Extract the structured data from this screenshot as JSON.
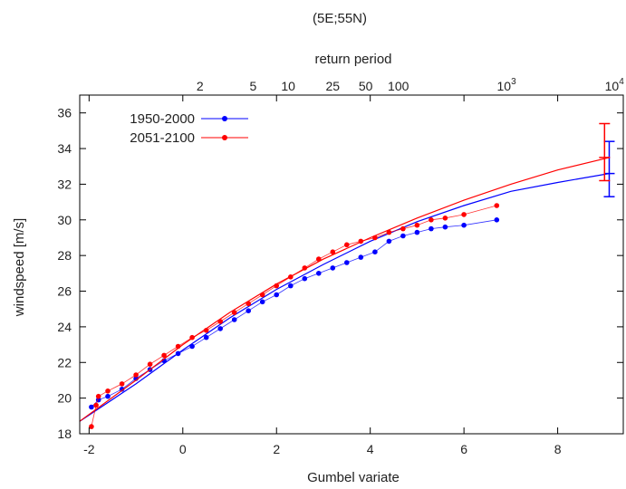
{
  "chart_data": {
    "type": "scatter",
    "title": "(5E;55N)",
    "xlabel": "Gumbel variate",
    "ylabel": "windspeed [m/s]",
    "x2label": "return period",
    "xlim": [
      -2.2,
      9.4
    ],
    "ylim": [
      18,
      37
    ],
    "grid": false,
    "legend_position": "top-left",
    "x_ticks": [
      -2,
      0,
      2,
      4,
      6,
      8
    ],
    "y_ticks": [
      18,
      20,
      22,
      24,
      26,
      28,
      30,
      32,
      34,
      36
    ],
    "x2_ticks": [
      {
        "label": "2",
        "value": 2
      },
      {
        "label": "5",
        "value": 5
      },
      {
        "label": "10",
        "value": 10
      },
      {
        "label": "25",
        "value": 25
      },
      {
        "label": "50",
        "value": 50
      },
      {
        "label": "100",
        "value": 100
      },
      {
        "label": "10",
        "exp": "3",
        "value": 1000
      },
      {
        "label": "10",
        "exp": "4",
        "value": 10000
      }
    ],
    "series": [
      {
        "name": "1950-2000",
        "color": "#0000ff",
        "points": [
          [
            -1.95,
            19.5
          ],
          [
            -1.8,
            19.9
          ],
          [
            -1.6,
            20.1
          ],
          [
            -1.3,
            20.5
          ],
          [
            -1.0,
            21.1
          ],
          [
            -0.7,
            21.6
          ],
          [
            -0.4,
            22.1
          ],
          [
            -0.1,
            22.5
          ],
          [
            0.2,
            22.9
          ],
          [
            0.5,
            23.4
          ],
          [
            0.8,
            23.9
          ],
          [
            1.1,
            24.4
          ],
          [
            1.4,
            24.9
          ],
          [
            1.7,
            25.4
          ],
          [
            2.0,
            25.8
          ],
          [
            2.3,
            26.3
          ],
          [
            2.6,
            26.7
          ],
          [
            2.9,
            27.0
          ],
          [
            3.2,
            27.3
          ],
          [
            3.5,
            27.6
          ],
          [
            3.8,
            27.9
          ],
          [
            4.1,
            28.2
          ],
          [
            4.4,
            28.8
          ],
          [
            4.7,
            29.1
          ],
          [
            5.0,
            29.3
          ],
          [
            5.3,
            29.5
          ],
          [
            5.6,
            29.6
          ],
          [
            6.0,
            29.7
          ],
          [
            6.7,
            30.0
          ]
        ],
        "fit_points": [
          [
            -2.2,
            18.7
          ],
          [
            -1,
            20.8
          ],
          [
            0,
            22.7
          ],
          [
            1,
            24.5
          ],
          [
            2,
            26.1
          ],
          [
            3,
            27.5
          ],
          [
            4,
            28.8
          ],
          [
            5,
            29.9
          ],
          [
            6,
            30.8
          ],
          [
            7,
            31.6
          ],
          [
            8,
            32.1
          ],
          [
            9.1,
            32.6
          ]
        ],
        "error_bar": {
          "x": 9.1,
          "low": 31.3,
          "high": 34.4,
          "center": 32.6
        }
      },
      {
        "name": "2051-2100",
        "color": "#ff0000",
        "points": [
          [
            -1.95,
            18.4
          ],
          [
            -1.85,
            19.6
          ],
          [
            -1.8,
            20.1
          ],
          [
            -1.6,
            20.4
          ],
          [
            -1.3,
            20.8
          ],
          [
            -1.0,
            21.3
          ],
          [
            -0.7,
            21.9
          ],
          [
            -0.4,
            22.4
          ],
          [
            -0.1,
            22.9
          ],
          [
            0.2,
            23.4
          ],
          [
            0.5,
            23.8
          ],
          [
            0.8,
            24.3
          ],
          [
            1.1,
            24.8
          ],
          [
            1.4,
            25.3
          ],
          [
            1.7,
            25.8
          ],
          [
            2.0,
            26.3
          ],
          [
            2.3,
            26.8
          ],
          [
            2.6,
            27.3
          ],
          [
            2.9,
            27.8
          ],
          [
            3.2,
            28.2
          ],
          [
            3.5,
            28.6
          ],
          [
            3.8,
            28.8
          ],
          [
            4.1,
            29.0
          ],
          [
            4.4,
            29.3
          ],
          [
            4.7,
            29.5
          ],
          [
            5.0,
            29.7
          ],
          [
            5.3,
            30.0
          ],
          [
            5.6,
            30.1
          ],
          [
            6.0,
            30.3
          ],
          [
            6.7,
            30.8
          ]
        ],
        "fit_points": [
          [
            -2.2,
            18.7
          ],
          [
            -1,
            21.0
          ],
          [
            0,
            23.0
          ],
          [
            1,
            24.8
          ],
          [
            2,
            26.4
          ],
          [
            3,
            27.8
          ],
          [
            4,
            29.0
          ],
          [
            5,
            30.1
          ],
          [
            6,
            31.1
          ],
          [
            7,
            32.0
          ],
          [
            8,
            32.8
          ],
          [
            9.1,
            33.5
          ]
        ],
        "error_bar": {
          "x": 9.0,
          "low": 32.2,
          "high": 35.4,
          "center": 33.5
        }
      }
    ]
  }
}
